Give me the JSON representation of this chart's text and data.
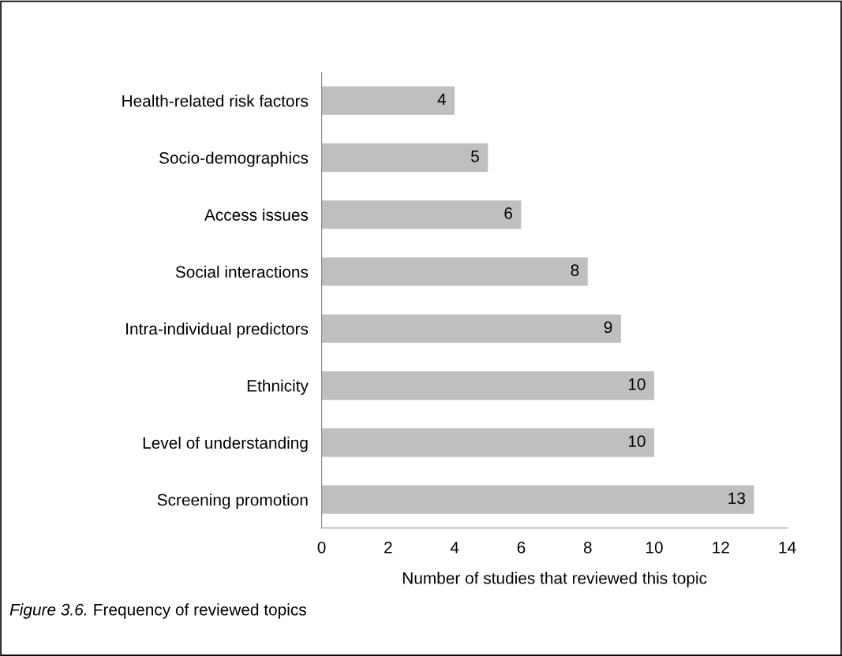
{
  "chart_data": {
    "type": "bar",
    "orientation": "horizontal",
    "categories": [
      "Health-related risk factors",
      "Socio-demographics",
      "Access issues",
      "Social interactions",
      "Intra-individual predictors",
      "Ethnicity",
      "Level of understanding",
      "Screening promotion"
    ],
    "values": [
      4,
      5,
      6,
      8,
      9,
      10,
      10,
      13
    ],
    "color": "#bfbfbf",
    "xlim": [
      0,
      14
    ],
    "xticks": [
      0,
      2,
      4,
      6,
      8,
      10,
      12,
      14
    ],
    "xlabel": "Number of studies that reviewed this topic",
    "data_labels": true,
    "grid": false,
    "legend": false,
    "annotations": [
      "Figure 3.6.",
      "Frequency of reviewed topics"
    ]
  }
}
